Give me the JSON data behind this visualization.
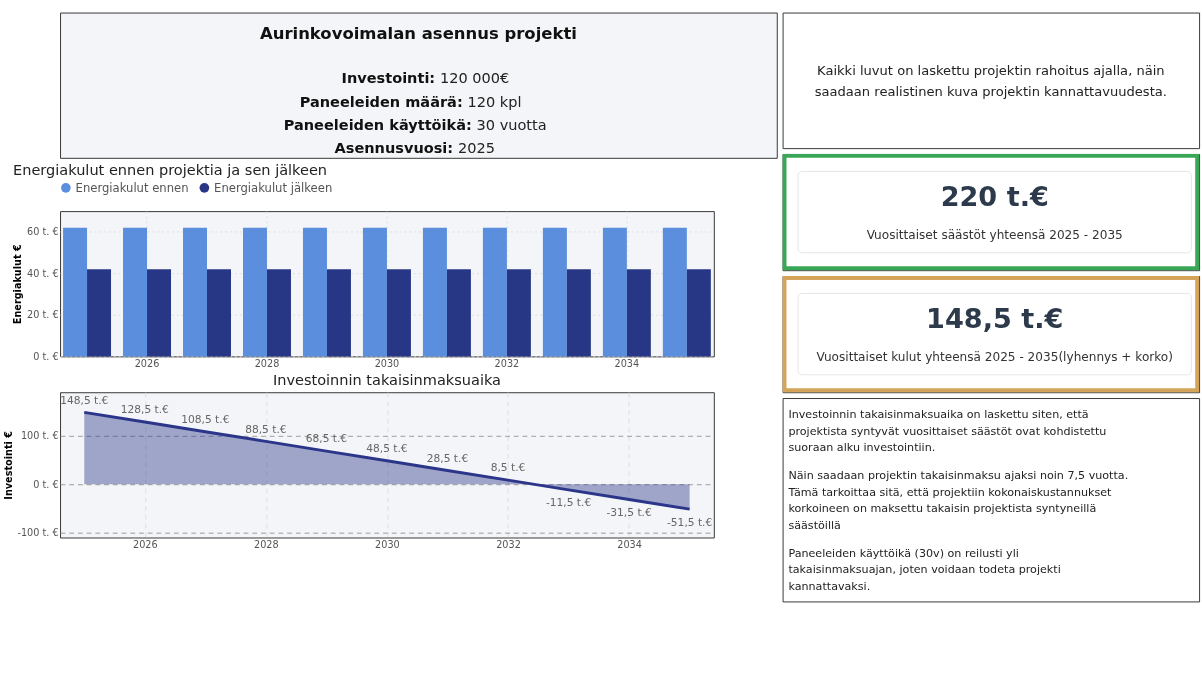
{
  "chart_data": [
    {
      "type": "other",
      "title": "Aurinkovoimalan asennus projekti",
      "annotations": [
        "Investointi: 120 000€",
        "Paneeleiden määrä: 120 kpl",
        "Paneeleiden käyttöikä: 30 vuotta",
        "Asennusvuosi: 2025"
      ]
    },
    {
      "type": "bar",
      "title": "Energiakulut ennen projektia ja sen jälkeen",
      "ylabel": "Energiakulut €",
      "categories": [
        null,
        "2026",
        null,
        "2028",
        null,
        "2030",
        null,
        "2032",
        null,
        "2034",
        null
      ],
      "series": [
        {
          "name": "Energiakulut ennen",
          "color": "#5b8fde",
          "values": [
            62,
            62,
            62,
            62,
            62,
            62,
            62,
            62,
            62,
            62,
            62
          ]
        },
        {
          "name": "Energiakulut jälkeen",
          "color": "#283785",
          "values": [
            42,
            42,
            42,
            42,
            42,
            42,
            42,
            42,
            42,
            42,
            42
          ]
        }
      ],
      "ylim": [
        0,
        70
      ],
      "yticks": [
        {
          "value": 0,
          "label": "0 t. €"
        },
        {
          "value": 20,
          "label": "20 t. €"
        },
        {
          "value": 40,
          "label": "40 t. €"
        },
        {
          "value": 60,
          "label": "60 t. €"
        }
      ],
      "grid": true,
      "legend": "top left"
    },
    {
      "type": "area",
      "title": "Investoinnin takaisinmaksuaika",
      "ylabel": "Investointi €",
      "x": [
        2025,
        2026,
        2027,
        2028,
        2029,
        2030,
        2031,
        2032,
        2033,
        2034,
        2035
      ],
      "series": [
        {
          "color": "#2b3589",
          "values": [
            148.5,
            128.5,
            108.5,
            88.5,
            68.5,
            48.5,
            28.5,
            8.5,
            -11.5,
            -31.5,
            -51.5
          ],
          "value_labels": [
            "148,5 t.€",
            "128,5 t.€",
            "108,5 t.€",
            "88,5 t.€",
            "68,5 t.€",
            "48,5 t.€",
            "28,5 t.€",
            "8,5 t.€",
            "-11,5 t.€",
            "-31,5 t.€",
            "-51,5 t.€"
          ]
        }
      ],
      "xlim": [
        2024.6,
        2035.4
      ],
      "xticks": [
        2026,
        2028,
        2030,
        2032,
        2034
      ],
      "ylim": [
        -110,
        190
      ],
      "yticks": [
        {
          "value": -100,
          "label": "-100 t. €"
        },
        {
          "value": 0,
          "label": "0 t. €"
        },
        {
          "value": 100,
          "label": "100 t. €"
        }
      ],
      "grid": true,
      "line_style": "solid"
    },
    {
      "type": "other",
      "annotations": [
        "Kaikki luvut on laskettu projektin rahoitus ajalla, näin saadaan realistinen kuva projektin kannattavuudesta."
      ]
    },
    {
      "type": "other",
      "title": "220 t.€",
      "subtitle": "Vuosittaiset säästöt yhteensä 2025 - 2035",
      "color": "#3aa757"
    },
    {
      "type": "other",
      "title": "148,5 t.€",
      "subtitle": "Vuosittaiset kulut yhteensä 2025 - 2035(lyhennys + korko)",
      "color": "#d4a45a"
    },
    {
      "type": "other",
      "annotations": [
        "Investoinnin takaisinmaksuaika on laskettu siten, että projektista syntyvät vuosittaiset säästöt ovat kohdistettu suoraan alku investointiin.",
        "Näin saadaan projektin takaisinmaksu ajaksi noin 7,5 vuotta. Tämä tarkoittaa sitä, että projektiin kokonaiskustannukset korkoineen on maksettu takaisin projektista syntyneillä säästöillä",
        "Paneeleiden käyttöikä (30v) on reilusti yli takaisinmaksuajan, joten voidaan todeta projekti kannattavaksi."
      ]
    }
  ]
}
